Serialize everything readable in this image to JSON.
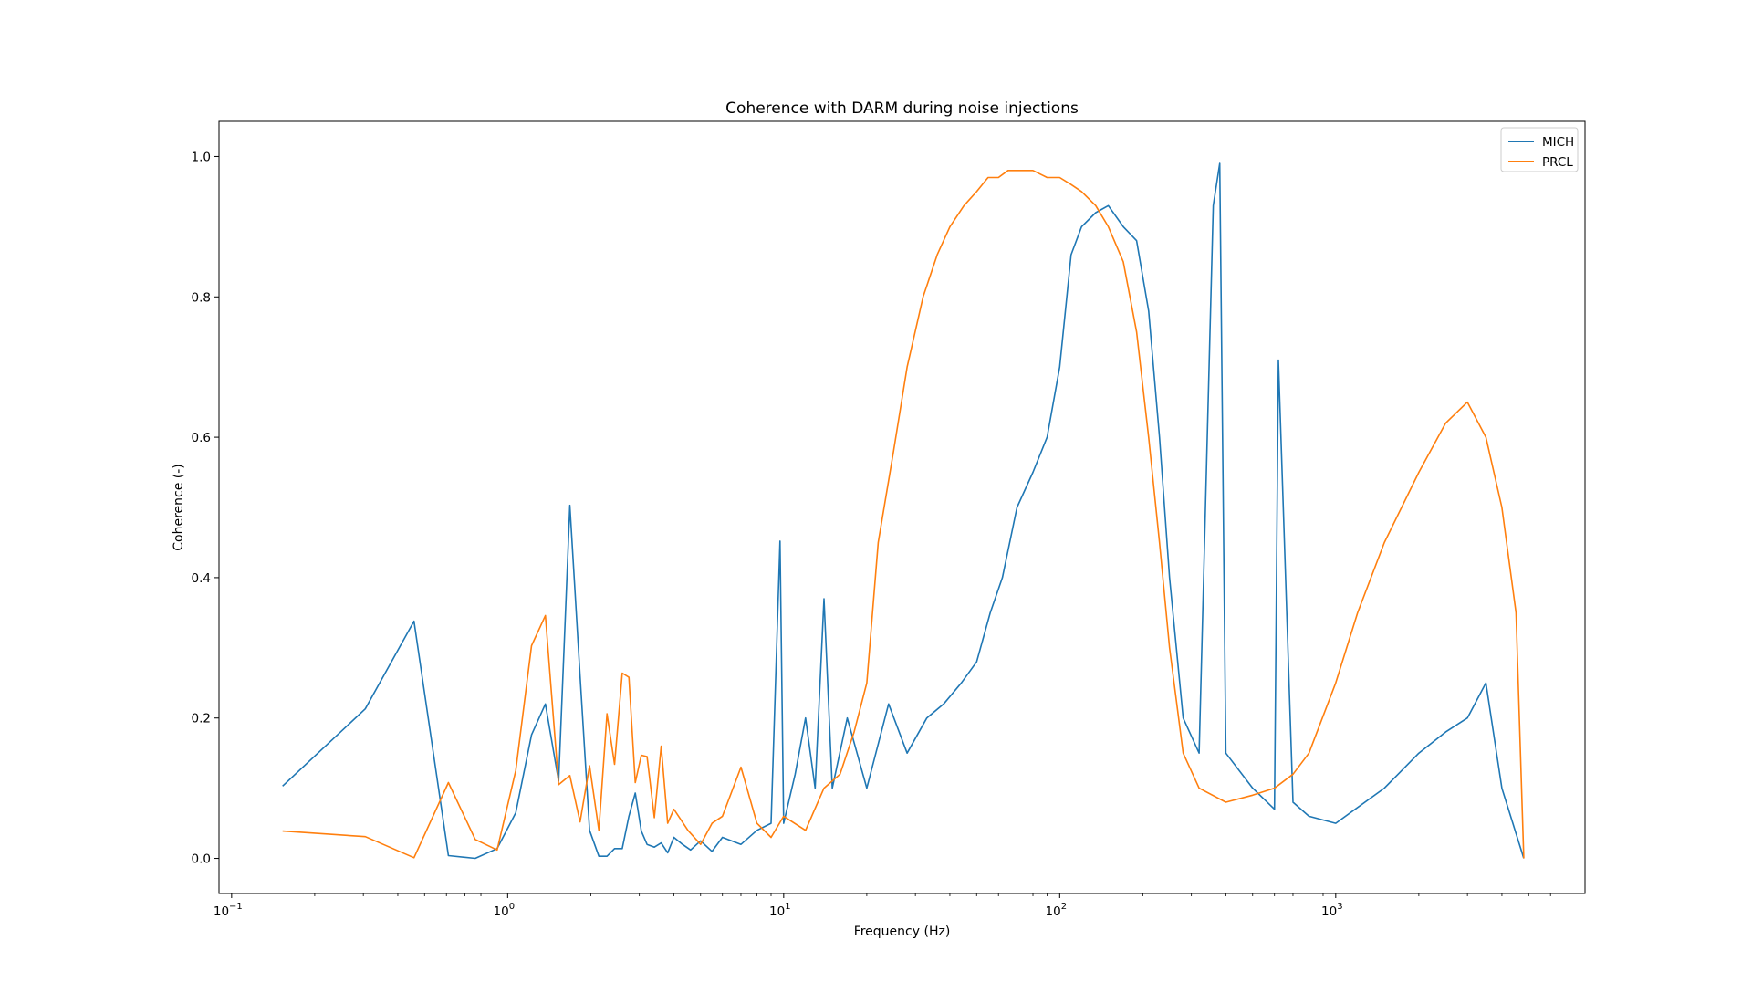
{
  "chart_data": {
    "type": "line",
    "title": "Coherence with DARM during noise injections",
    "xlabel": "Frequency (Hz)",
    "ylabel": "Coherence (-)",
    "xscale": "log",
    "xlim": [
      0.09,
      8000
    ],
    "ylim": [
      -0.05,
      1.05
    ],
    "x_ticks": [
      {
        "value": 0.1,
        "base": "10",
        "exp": "−1"
      },
      {
        "value": 1,
        "base": "10",
        "exp": "0"
      },
      {
        "value": 10,
        "base": "10",
        "exp": "1"
      },
      {
        "value": 100,
        "base": "10",
        "exp": "2"
      },
      {
        "value": 1000,
        "base": "10",
        "exp": "3"
      }
    ],
    "y_ticks": [
      {
        "value": 0.0,
        "label": "0.0"
      },
      {
        "value": 0.2,
        "label": "0.2"
      },
      {
        "value": 0.4,
        "label": "0.4"
      },
      {
        "value": 0.6,
        "label": "0.6"
      },
      {
        "value": 0.8,
        "label": "0.8"
      },
      {
        "value": 1.0,
        "label": "1.0"
      }
    ],
    "grid": false,
    "legend": "top-right",
    "series": [
      {
        "name": "MICH",
        "color": "#1f77b4",
        "points": [
          [
            0.153,
            0.103
          ],
          [
            0.305,
            0.213
          ],
          [
            0.458,
            0.338
          ],
          [
            0.61,
            0.004
          ],
          [
            0.763,
            0.0
          ],
          [
            0.916,
            0.014
          ],
          [
            1.07,
            0.065
          ],
          [
            1.22,
            0.176
          ],
          [
            1.37,
            0.22
          ],
          [
            1.53,
            0.11
          ],
          [
            1.68,
            0.503
          ],
          [
            1.83,
            0.26
          ],
          [
            1.98,
            0.04
          ],
          [
            2.14,
            0.003
          ],
          [
            2.29,
            0.003
          ],
          [
            2.44,
            0.014
          ],
          [
            2.6,
            0.014
          ],
          [
            2.75,
            0.06
          ],
          [
            2.9,
            0.093
          ],
          [
            3.05,
            0.039
          ],
          [
            3.2,
            0.02
          ],
          [
            3.4,
            0.016
          ],
          [
            3.6,
            0.022
          ],
          [
            3.8,
            0.008
          ],
          [
            4.0,
            0.03
          ],
          [
            4.3,
            0.02
          ],
          [
            4.6,
            0.012
          ],
          [
            5.0,
            0.025
          ],
          [
            5.5,
            0.01
          ],
          [
            6.0,
            0.03
          ],
          [
            7.0,
            0.02
          ],
          [
            8.0,
            0.04
          ],
          [
            9.0,
            0.05
          ],
          [
            9.7,
            0.452
          ],
          [
            10.0,
            0.05
          ],
          [
            11.0,
            0.12
          ],
          [
            12.0,
            0.2
          ],
          [
            13.0,
            0.1
          ],
          [
            14.0,
            0.37
          ],
          [
            15.0,
            0.1
          ],
          [
            17.0,
            0.2
          ],
          [
            20.0,
            0.1
          ],
          [
            24.0,
            0.22
          ],
          [
            28.0,
            0.15
          ],
          [
            33.0,
            0.2
          ],
          [
            38.0,
            0.22
          ],
          [
            44.0,
            0.25
          ],
          [
            50.0,
            0.28
          ],
          [
            56.0,
            0.35
          ],
          [
            62.0,
            0.4
          ],
          [
            70.0,
            0.5
          ],
          [
            80.0,
            0.55
          ],
          [
            90.0,
            0.6
          ],
          [
            100.0,
            0.7
          ],
          [
            110.0,
            0.86
          ],
          [
            120.0,
            0.9
          ],
          [
            135.0,
            0.92
          ],
          [
            150.0,
            0.93
          ],
          [
            170.0,
            0.9
          ],
          [
            190.0,
            0.88
          ],
          [
            210.0,
            0.78
          ],
          [
            230.0,
            0.6
          ],
          [
            250.0,
            0.4
          ],
          [
            280.0,
            0.2
          ],
          [
            320.0,
            0.15
          ],
          [
            360.0,
            0.93
          ],
          [
            380.0,
            0.99
          ],
          [
            400.0,
            0.15
          ],
          [
            500.0,
            0.1
          ],
          [
            600.0,
            0.07
          ],
          [
            620.0,
            0.71
          ],
          [
            700.0,
            0.08
          ],
          [
            800.0,
            0.06
          ],
          [
            1000.0,
            0.05
          ],
          [
            1500.0,
            0.1
          ],
          [
            2000.0,
            0.15
          ],
          [
            2500.0,
            0.18
          ],
          [
            3000.0,
            0.2
          ],
          [
            3500.0,
            0.25
          ],
          [
            4000.0,
            0.1
          ],
          [
            4800.0,
            0.0
          ]
        ]
      },
      {
        "name": "PRCL",
        "color": "#ff7f0e",
        "points": [
          [
            0.153,
            0.039
          ],
          [
            0.305,
            0.031
          ],
          [
            0.458,
            0.001
          ],
          [
            0.61,
            0.108
          ],
          [
            0.763,
            0.027
          ],
          [
            0.916,
            0.012
          ],
          [
            1.07,
            0.125
          ],
          [
            1.22,
            0.303
          ],
          [
            1.37,
            0.346
          ],
          [
            1.53,
            0.105
          ],
          [
            1.68,
            0.118
          ],
          [
            1.83,
            0.052
          ],
          [
            1.98,
            0.132
          ],
          [
            2.14,
            0.04
          ],
          [
            2.29,
            0.206
          ],
          [
            2.44,
            0.134
          ],
          [
            2.6,
            0.264
          ],
          [
            2.75,
            0.258
          ],
          [
            2.9,
            0.108
          ],
          [
            3.05,
            0.147
          ],
          [
            3.2,
            0.145
          ],
          [
            3.4,
            0.058
          ],
          [
            3.6,
            0.16
          ],
          [
            3.8,
            0.05
          ],
          [
            4.0,
            0.07
          ],
          [
            4.5,
            0.04
          ],
          [
            5.0,
            0.02
          ],
          [
            5.5,
            0.05
          ],
          [
            6.0,
            0.06
          ],
          [
            7.0,
            0.13
          ],
          [
            8.0,
            0.05
          ],
          [
            9.0,
            0.03
          ],
          [
            10.0,
            0.06
          ],
          [
            12.0,
            0.04
          ],
          [
            14.0,
            0.1
          ],
          [
            16.0,
            0.12
          ],
          [
            18.0,
            0.18
          ],
          [
            20.0,
            0.25
          ],
          [
            22.0,
            0.45
          ],
          [
            25.0,
            0.58
          ],
          [
            28.0,
            0.7
          ],
          [
            32.0,
            0.8
          ],
          [
            36.0,
            0.86
          ],
          [
            40.0,
            0.9
          ],
          [
            45.0,
            0.93
          ],
          [
            50.0,
            0.95
          ],
          [
            55.0,
            0.97
          ],
          [
            60.0,
            0.97
          ],
          [
            65.0,
            0.98
          ],
          [
            70.0,
            0.98
          ],
          [
            80.0,
            0.98
          ],
          [
            90.0,
            0.97
          ],
          [
            100.0,
            0.97
          ],
          [
            110.0,
            0.96
          ],
          [
            120.0,
            0.95
          ],
          [
            135.0,
            0.93
          ],
          [
            150.0,
            0.9
          ],
          [
            170.0,
            0.85
          ],
          [
            190.0,
            0.75
          ],
          [
            210.0,
            0.6
          ],
          [
            230.0,
            0.45
          ],
          [
            250.0,
            0.3
          ],
          [
            280.0,
            0.15
          ],
          [
            320.0,
            0.1
          ],
          [
            400.0,
            0.08
          ],
          [
            500.0,
            0.09
          ],
          [
            600.0,
            0.1
          ],
          [
            700.0,
            0.12
          ],
          [
            800.0,
            0.15
          ],
          [
            1000.0,
            0.25
          ],
          [
            1200.0,
            0.35
          ],
          [
            1500.0,
            0.45
          ],
          [
            2000.0,
            0.55
          ],
          [
            2500.0,
            0.62
          ],
          [
            3000.0,
            0.65
          ],
          [
            3500.0,
            0.6
          ],
          [
            4000.0,
            0.5
          ],
          [
            4500.0,
            0.35
          ],
          [
            4800.0,
            0.0
          ]
        ]
      }
    ]
  }
}
